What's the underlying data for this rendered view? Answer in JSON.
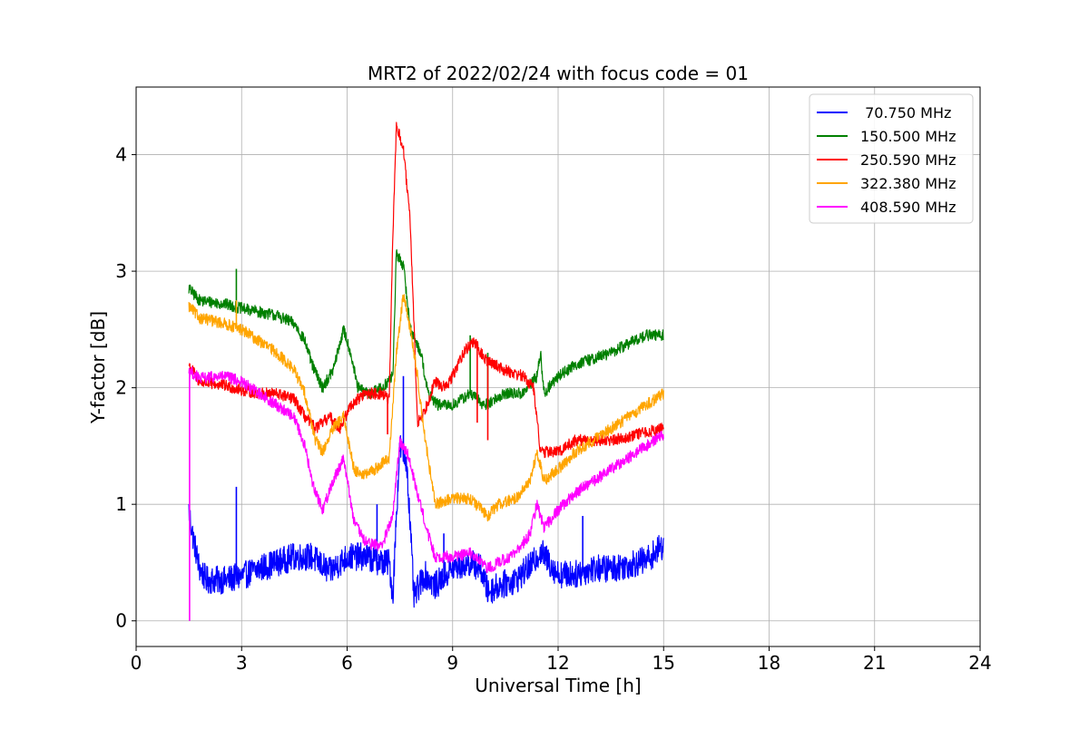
{
  "chart_data": {
    "type": "line",
    "title": "MRT2 of 2022/02/24 with focus code = 01",
    "xlabel": "Universal Time [h]",
    "ylabel": "Y-factor [dB]",
    "xlim": [
      0,
      24
    ],
    "ylim": [
      -0.22,
      4.58
    ],
    "xticks": [
      0,
      3,
      6,
      9,
      12,
      15,
      18,
      21,
      24
    ],
    "yticks": [
      0,
      1,
      2,
      3,
      4
    ],
    "grid": true,
    "legend_position": "top-right",
    "series": [
      {
        "name": " 70.750 MHz",
        "color": "#0000ff",
        "noise": 0.12,
        "points": [
          [
            1.5,
            0.95
          ],
          [
            1.6,
            0.75
          ],
          [
            1.8,
            0.45
          ],
          [
            2.0,
            0.35
          ],
          [
            2.5,
            0.35
          ],
          [
            3.0,
            0.38
          ],
          [
            3.5,
            0.45
          ],
          [
            4.0,
            0.5
          ],
          [
            4.5,
            0.55
          ],
          [
            5.0,
            0.55
          ],
          [
            5.5,
            0.42
          ],
          [
            6.0,
            0.55
          ],
          [
            6.5,
            0.55
          ],
          [
            7.0,
            0.5
          ],
          [
            7.2,
            0.5
          ],
          [
            7.3,
            0.2
          ],
          [
            7.4,
            0.9
          ],
          [
            7.5,
            1.5
          ],
          [
            7.7,
            1.35
          ],
          [
            7.9,
            0.2
          ],
          [
            8.2,
            0.4
          ],
          [
            8.5,
            0.3
          ],
          [
            9.0,
            0.45
          ],
          [
            9.5,
            0.5
          ],
          [
            9.8,
            0.45
          ],
          [
            10.0,
            0.25
          ],
          [
            10.3,
            0.3
          ],
          [
            10.8,
            0.35
          ],
          [
            11.3,
            0.5
          ],
          [
            11.5,
            0.6
          ],
          [
            12.0,
            0.4
          ],
          [
            12.5,
            0.4
          ],
          [
            13.0,
            0.45
          ],
          [
            13.5,
            0.45
          ],
          [
            14.0,
            0.48
          ],
          [
            14.5,
            0.52
          ],
          [
            15.0,
            0.65
          ]
        ],
        "spikes": [
          [
            2.85,
            1.15
          ],
          [
            6.85,
            1.0
          ],
          [
            7.6,
            2.1
          ],
          [
            8.75,
            0.75
          ],
          [
            12.7,
            0.9
          ]
        ]
      },
      {
        "name": "150.500 MHz",
        "color": "#008000",
        "noise": 0.05,
        "points": [
          [
            1.5,
            2.85
          ],
          [
            1.8,
            2.75
          ],
          [
            2.5,
            2.72
          ],
          [
            3.0,
            2.68
          ],
          [
            3.5,
            2.65
          ],
          [
            4.0,
            2.62
          ],
          [
            4.5,
            2.55
          ],
          [
            4.8,
            2.4
          ],
          [
            5.0,
            2.2
          ],
          [
            5.3,
            2.0
          ],
          [
            5.6,
            2.15
          ],
          [
            5.9,
            2.5
          ],
          [
            6.1,
            2.3
          ],
          [
            6.3,
            2.0
          ],
          [
            6.6,
            1.95
          ],
          [
            7.0,
            2.0
          ],
          [
            7.3,
            2.1
          ],
          [
            7.4,
            3.15
          ],
          [
            7.6,
            3.05
          ],
          [
            7.8,
            2.5
          ],
          [
            8.1,
            2.3
          ],
          [
            8.3,
            1.95
          ],
          [
            8.6,
            1.85
          ],
          [
            9.0,
            1.85
          ],
          [
            9.5,
            1.95
          ],
          [
            9.9,
            1.85
          ],
          [
            10.2,
            1.9
          ],
          [
            10.5,
            1.95
          ],
          [
            11.0,
            1.95
          ],
          [
            11.4,
            2.1
          ],
          [
            11.5,
            2.3
          ],
          [
            11.6,
            1.95
          ],
          [
            12.0,
            2.1
          ],
          [
            12.5,
            2.2
          ],
          [
            13.0,
            2.25
          ],
          [
            13.5,
            2.3
          ],
          [
            14.0,
            2.38
          ],
          [
            14.5,
            2.45
          ],
          [
            15.0,
            2.45
          ]
        ],
        "spikes": [
          [
            2.85,
            3.02
          ],
          [
            9.5,
            2.45
          ],
          [
            10.0,
            2.3
          ]
        ]
      },
      {
        "name": "250.590 MHz",
        "color": "#ff0000",
        "noise": 0.05,
        "points": [
          [
            1.5,
            2.2
          ],
          [
            1.8,
            2.05
          ],
          [
            2.5,
            2.02
          ],
          [
            3.0,
            1.98
          ],
          [
            3.5,
            1.95
          ],
          [
            4.0,
            1.95
          ],
          [
            4.5,
            1.9
          ],
          [
            4.8,
            1.75
          ],
          [
            5.1,
            1.65
          ],
          [
            5.5,
            1.75
          ],
          [
            5.8,
            1.65
          ],
          [
            6.1,
            1.85
          ],
          [
            6.5,
            1.95
          ],
          [
            7.0,
            1.95
          ],
          [
            7.2,
            1.9
          ],
          [
            7.3,
            3.3
          ],
          [
            7.4,
            4.25
          ],
          [
            7.6,
            4.05
          ],
          [
            7.8,
            3.4
          ],
          [
            8.0,
            1.7
          ],
          [
            8.2,
            1.8
          ],
          [
            8.5,
            2.05
          ],
          [
            8.8,
            2.0
          ],
          [
            9.0,
            2.1
          ],
          [
            9.3,
            2.3
          ],
          [
            9.6,
            2.4
          ],
          [
            9.9,
            2.25
          ],
          [
            10.2,
            2.2
          ],
          [
            10.5,
            2.15
          ],
          [
            11.0,
            2.1
          ],
          [
            11.3,
            2.0
          ],
          [
            11.5,
            1.45
          ],
          [
            12.0,
            1.45
          ],
          [
            12.5,
            1.55
          ],
          [
            13.0,
            1.55
          ],
          [
            13.5,
            1.55
          ],
          [
            14.0,
            1.58
          ],
          [
            14.5,
            1.62
          ],
          [
            15.0,
            1.65
          ]
        ],
        "spikes": [
          [
            7.15,
            1.6
          ],
          [
            9.7,
            1.7
          ],
          [
            10.0,
            1.55
          ]
        ]
      },
      {
        "name": "322.380 MHz",
        "color": "#ffa500",
        "noise": 0.05,
        "points": [
          [
            1.5,
            2.7
          ],
          [
            1.8,
            2.6
          ],
          [
            2.5,
            2.55
          ],
          [
            3.0,
            2.5
          ],
          [
            3.5,
            2.4
          ],
          [
            4.0,
            2.3
          ],
          [
            4.5,
            2.15
          ],
          [
            4.8,
            1.95
          ],
          [
            5.1,
            1.55
          ],
          [
            5.3,
            1.45
          ],
          [
            5.6,
            1.65
          ],
          [
            5.9,
            1.75
          ],
          [
            6.2,
            1.3
          ],
          [
            6.5,
            1.25
          ],
          [
            6.8,
            1.3
          ],
          [
            7.2,
            1.4
          ],
          [
            7.4,
            2.3
          ],
          [
            7.6,
            2.8
          ],
          [
            7.8,
            2.5
          ],
          [
            8.0,
            2.1
          ],
          [
            8.2,
            1.6
          ],
          [
            8.5,
            1.0
          ],
          [
            9.0,
            1.05
          ],
          [
            9.5,
            1.05
          ],
          [
            10.0,
            0.9
          ],
          [
            10.3,
            1.0
          ],
          [
            10.8,
            1.05
          ],
          [
            11.2,
            1.2
          ],
          [
            11.4,
            1.45
          ],
          [
            11.6,
            1.2
          ],
          [
            12.0,
            1.3
          ],
          [
            12.5,
            1.45
          ],
          [
            13.0,
            1.55
          ],
          [
            13.5,
            1.65
          ],
          [
            14.0,
            1.75
          ],
          [
            14.5,
            1.85
          ],
          [
            15.0,
            1.95
          ]
        ],
        "spikes": [
          [
            2.85,
            2.75
          ]
        ]
      },
      {
        "name": "408.590 MHz",
        "color": "#ff00ff",
        "noise": 0.05,
        "points": [
          [
            1.5,
            2.15
          ],
          [
            1.8,
            2.08
          ],
          [
            2.5,
            2.1
          ],
          [
            3.0,
            2.05
          ],
          [
            3.5,
            1.95
          ],
          [
            4.0,
            1.85
          ],
          [
            4.5,
            1.75
          ],
          [
            4.8,
            1.5
          ],
          [
            5.0,
            1.2
          ],
          [
            5.3,
            0.95
          ],
          [
            5.6,
            1.2
          ],
          [
            5.9,
            1.4
          ],
          [
            6.2,
            0.85
          ],
          [
            6.5,
            0.68
          ],
          [
            6.8,
            0.65
          ],
          [
            7.0,
            0.65
          ],
          [
            7.3,
            0.9
          ],
          [
            7.5,
            1.55
          ],
          [
            7.7,
            1.45
          ],
          [
            8.0,
            1.1
          ],
          [
            8.3,
            0.75
          ],
          [
            8.5,
            0.55
          ],
          [
            9.0,
            0.55
          ],
          [
            9.5,
            0.58
          ],
          [
            10.0,
            0.45
          ],
          [
            10.3,
            0.5
          ],
          [
            10.8,
            0.58
          ],
          [
            11.2,
            0.75
          ],
          [
            11.4,
            1.0
          ],
          [
            11.6,
            0.8
          ],
          [
            12.0,
            0.95
          ],
          [
            12.5,
            1.1
          ],
          [
            13.0,
            1.2
          ],
          [
            13.5,
            1.3
          ],
          [
            14.0,
            1.4
          ],
          [
            14.5,
            1.5
          ],
          [
            15.0,
            1.6
          ]
        ],
        "spikes": [
          [
            1.52,
            0.0
          ]
        ]
      }
    ]
  }
}
